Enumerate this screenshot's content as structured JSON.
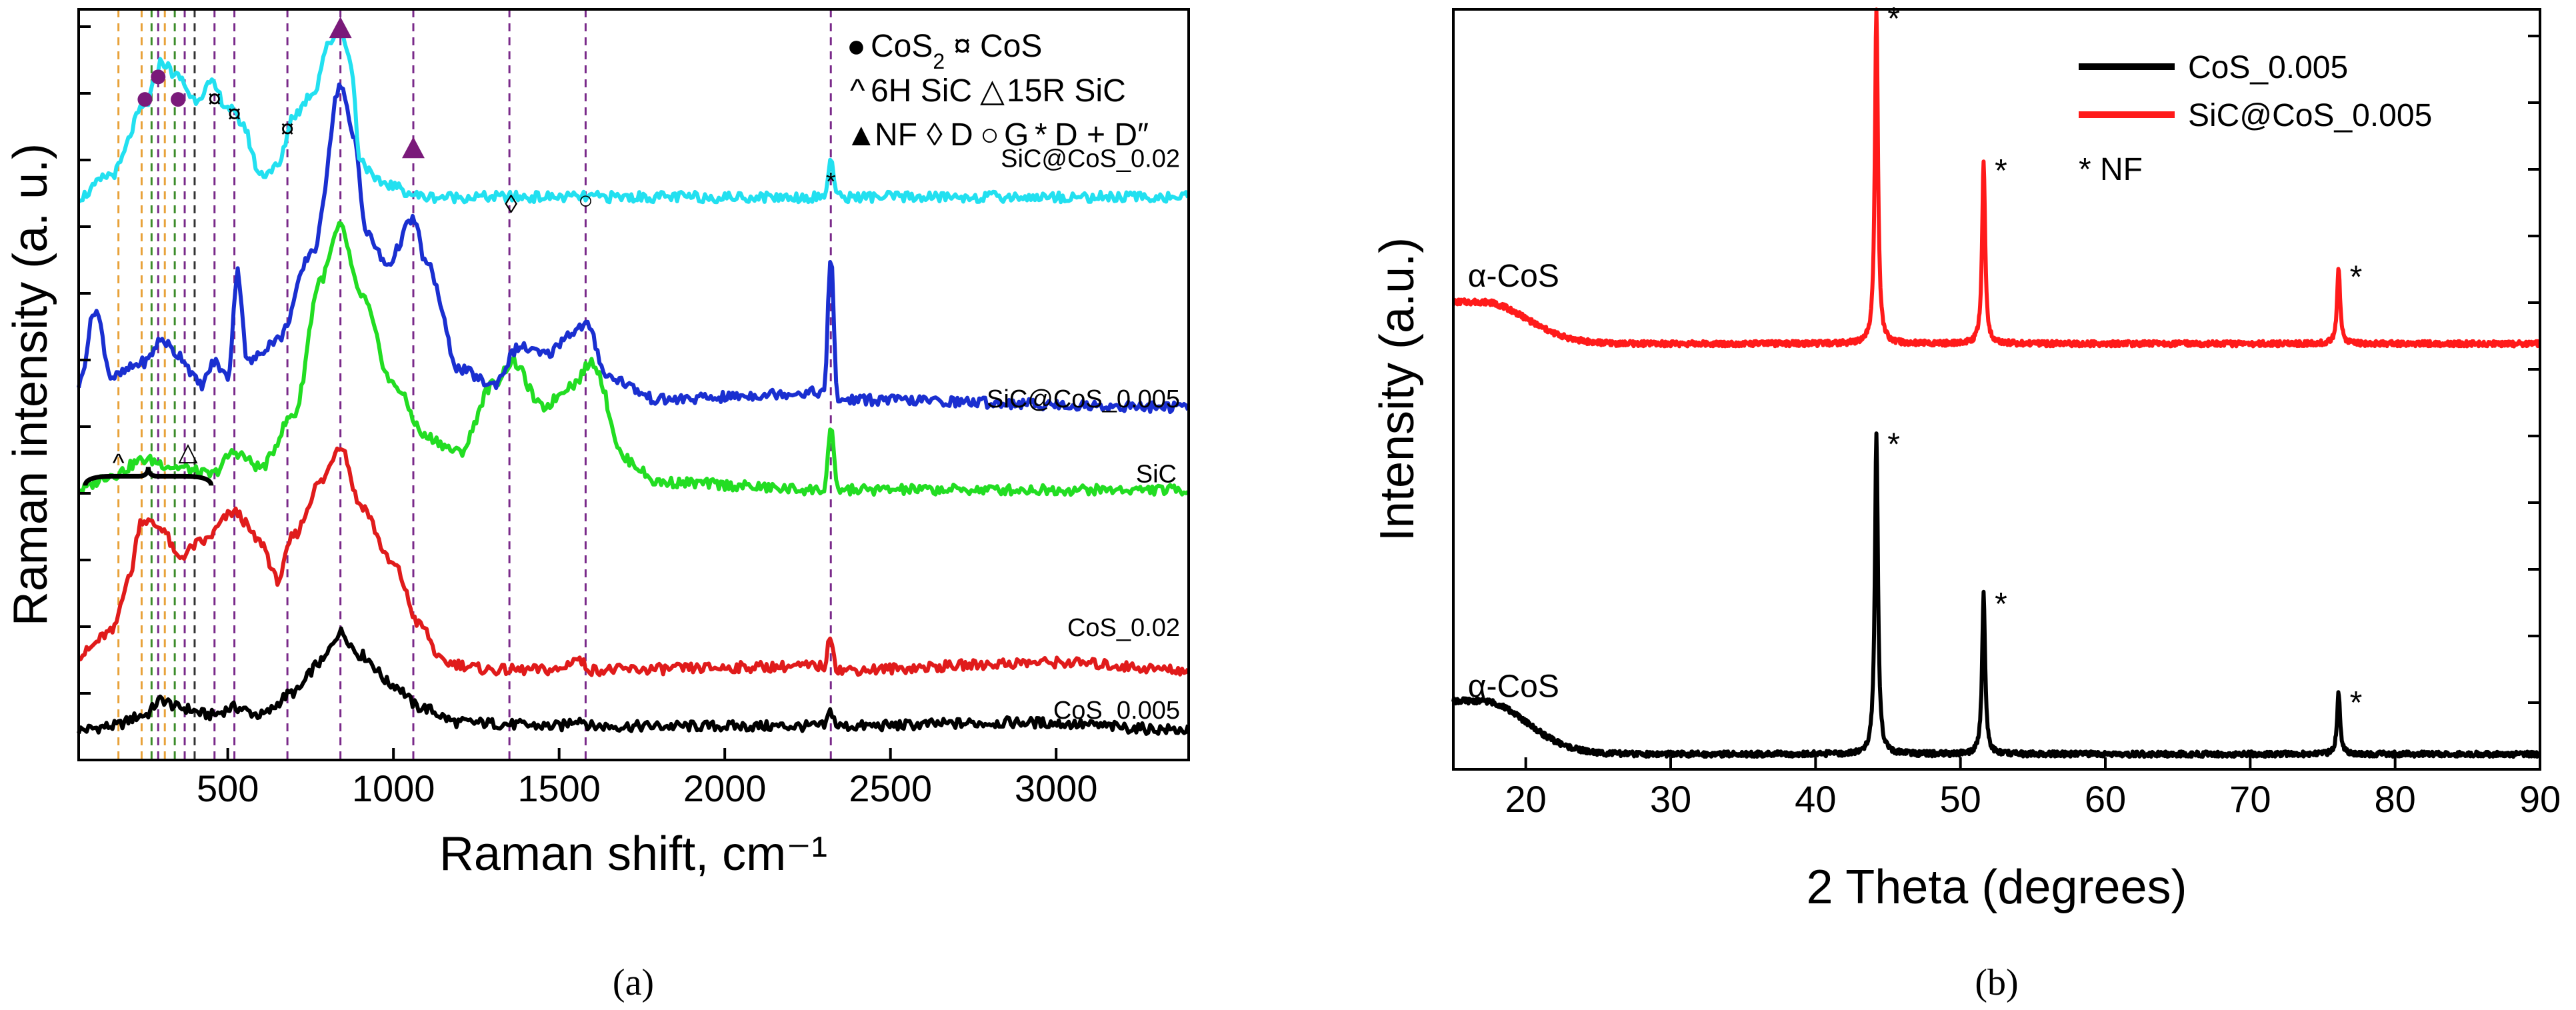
{
  "chart_data": [
    {
      "type": "line",
      "panel_label": "(a)",
      "xlabel": "Raman shift, cm⁻¹",
      "ylabel": "Raman intensity (a. u.)",
      "xlim": [
        50,
        3400
      ],
      "ylim": [
        0,
        100
      ],
      "x_ticks": [
        500,
        1000,
        1500,
        2000,
        2500,
        3000
      ],
      "series": [
        {
          "name": "CoS_0.005",
          "color": "#000000",
          "base": 4,
          "points": [
            [
              50,
              0
            ],
            [
              150,
              0.5
            ],
            [
              250,
              2
            ],
            [
              300,
              4
            ],
            [
              350,
              3
            ],
            [
              450,
              2
            ],
            [
              520,
              3
            ],
            [
              600,
              2
            ],
            [
              700,
              5
            ],
            [
              780,
              9
            ],
            [
              840,
              13
            ],
            [
              900,
              10
            ],
            [
              1000,
              6
            ],
            [
              1080,
              3
            ],
            [
              1200,
              1
            ],
            [
              1500,
              0.5
            ],
            [
              1560,
              1.5
            ],
            [
              1600,
              0.5
            ],
            [
              2300,
              0.5
            ],
            [
              2320,
              2.5
            ],
            [
              2340,
              0.5
            ],
            [
              2900,
              1
            ],
            [
              3400,
              0
            ]
          ]
        },
        {
          "name": "CoS_0.02",
          "color": "#e01b1b",
          "base": 12,
          "points": [
            [
              50,
              2
            ],
            [
              150,
              5
            ],
            [
              200,
              12
            ],
            [
              240,
              20
            ],
            [
              300,
              19
            ],
            [
              350,
              15
            ],
            [
              420,
              17
            ],
            [
              520,
              21
            ],
            [
              600,
              17
            ],
            [
              650,
              12
            ],
            [
              700,
              18
            ],
            [
              780,
              25
            ],
            [
              840,
              30
            ],
            [
              900,
              22
            ],
            [
              1000,
              14
            ],
            [
              1080,
              6
            ],
            [
              1150,
              1
            ],
            [
              1300,
              0
            ],
            [
              1500,
              0
            ],
            [
              1550,
              1.5
            ],
            [
              1600,
              0
            ],
            [
              2300,
              0.5
            ],
            [
              2320,
              4.5
            ],
            [
              2340,
              0
            ],
            [
              3000,
              1
            ],
            [
              3400,
              0
            ]
          ]
        },
        {
          "name": "SiC",
          "color": "#22dd22",
          "base": 36,
          "points": [
            [
              50,
              0
            ],
            [
              150,
              2
            ],
            [
              250,
              4
            ],
            [
              350,
              3
            ],
            [
              450,
              2
            ],
            [
              520,
              5
            ],
            [
              600,
              3
            ],
            [
              700,
              10
            ],
            [
              780,
              28
            ],
            [
              840,
              35
            ],
            [
              900,
              26
            ],
            [
              1000,
              14
            ],
            [
              1100,
              7
            ],
            [
              1200,
              5
            ],
            [
              1300,
              14
            ],
            [
              1360,
              17
            ],
            [
              1450,
              11
            ],
            [
              1540,
              14
            ],
            [
              1600,
              17
            ],
            [
              1700,
              4
            ],
            [
              1800,
              1
            ],
            [
              2300,
              0
            ],
            [
              2320,
              8
            ],
            [
              2340,
              0
            ],
            [
              3400,
              0
            ]
          ]
        },
        {
          "name": "SiC@CoS_0.005",
          "color": "#1a2fd0",
          "base": 48,
          "points": [
            [
              50,
              2
            ],
            [
              100,
              12
            ],
            [
              150,
              3
            ],
            [
              250,
              5
            ],
            [
              300,
              8
            ],
            [
              350,
              6
            ],
            [
              420,
              2
            ],
            [
              460,
              5
            ],
            [
              500,
              3
            ],
            [
              530,
              17
            ],
            [
              560,
              5
            ],
            [
              650,
              8
            ],
            [
              760,
              20
            ],
            [
              840,
              42
            ],
            [
              880,
              35
            ],
            [
              920,
              22
            ],
            [
              980,
              18
            ],
            [
              1060,
              24
            ],
            [
              1100,
              18
            ],
            [
              1200,
              4
            ],
            [
              1300,
              2
            ],
            [
              1380,
              7
            ],
            [
              1460,
              6
            ],
            [
              1540,
              9
            ],
            [
              1580,
              10
            ],
            [
              1650,
              3
            ],
            [
              1800,
              0
            ],
            [
              2300,
              1
            ],
            [
              2320,
              19
            ],
            [
              2340,
              0
            ],
            [
              3400,
              -1
            ]
          ]
        },
        {
          "name": "SiC@CoS_0.02",
          "color": "#22e0f0",
          "base": 75,
          "points": [
            [
              50,
              0
            ],
            [
              150,
              3
            ],
            [
              250,
              12
            ],
            [
              300,
              18
            ],
            [
              350,
              16
            ],
            [
              400,
              13
            ],
            [
              450,
              15
            ],
            [
              500,
              12
            ],
            [
              540,
              10
            ],
            [
              600,
              3
            ],
            [
              650,
              4
            ],
            [
              700,
              11
            ],
            [
              760,
              14
            ],
            [
              800,
              20
            ],
            [
              840,
              23
            ],
            [
              870,
              18
            ],
            [
              900,
              5
            ],
            [
              950,
              2
            ],
            [
              1100,
              0
            ],
            [
              1300,
              0
            ],
            [
              1400,
              0
            ],
            [
              2300,
              0
            ],
            [
              2320,
              5
            ],
            [
              2340,
              0
            ],
            [
              3400,
              0
            ]
          ]
        }
      ],
      "series_labels": [
        "SiC@CoS_0.02",
        "SiC@CoS_0.005",
        "SiC",
        "CoS_0.02",
        "CoS_0.005"
      ],
      "reference_lines": [
        {
          "x": 170,
          "color": "#e8a23a"
        },
        {
          "x": 240,
          "color": "#e8a23a"
        },
        {
          "x": 270,
          "color": "#3c8c2a"
        },
        {
          "x": 290,
          "color": "#7a2a8a"
        },
        {
          "x": 310,
          "color": "#e8a23a"
        },
        {
          "x": 340,
          "color": "#3c8c2a"
        },
        {
          "x": 370,
          "color": "#7a2a8a"
        },
        {
          "x": 400,
          "color": "#333333"
        },
        {
          "x": 460,
          "color": "#7a2a8a"
        },
        {
          "x": 520,
          "color": "#7a2a8a"
        },
        {
          "x": 680,
          "color": "#7a2a8a"
        },
        {
          "x": 840,
          "color": "#7a2a8a"
        },
        {
          "x": 1060,
          "color": "#7a2a8a"
        },
        {
          "x": 1350,
          "color": "#7a2a8a"
        },
        {
          "x": 1580,
          "color": "#7a2a8a"
        },
        {
          "x": 2320,
          "color": "#7a2a8a"
        }
      ],
      "legend_lines": [
        {
          "sym1": "●",
          "text1": "CoS",
          "sub": "2",
          "sym2": "¤",
          "text2": "CoS"
        },
        {
          "sym1": "^",
          "text1": "6H SiC",
          "sym2": "△",
          "text2": "15R SiC"
        },
        {
          "sym1": "▲",
          "text1": "NF",
          "sym2": "◊",
          "text2": "D",
          "sym3": "○",
          "text3": "G",
          "sym4": "*",
          "text4": "D + D″"
        }
      ],
      "legend_colors": {
        "cos2": "#7a1a7a",
        "cos": "#8a3a9a",
        "sic6h": "#e8a23a",
        "sic15r": "#3c8c2a",
        "purple": "#7a1a7a"
      }
    },
    {
      "type": "line",
      "panel_label": "(b)",
      "xlabel": "2 Theta (degrees)",
      "ylabel": "Intensity (a.u.)",
      "xlim": [
        15,
        90
      ],
      "x_ticks": [
        20,
        30,
        40,
        50,
        60,
        70,
        80,
        90
      ],
      "legend": [
        {
          "name": "CoS_0.005",
          "color": "#000000"
        },
        {
          "name": "SiC@CoS_0.005",
          "color": "#ff1a1a"
        }
      ],
      "legend_note": "* NF",
      "phase_label": "α-CoS",
      "peak_marker": "*",
      "series": [
        {
          "name": "SiC@CoS_0.005",
          "color": "#ff1a1a",
          "base": 0.56,
          "broad": {
            "center": 17,
            "height": 0.055,
            "width": 3
          },
          "peaks": [
            {
              "x": 44.2,
              "h": 0.44
            },
            {
              "x": 51.6,
              "h": 0.24
            },
            {
              "x": 76.1,
              "h": 0.1
            }
          ]
        },
        {
          "name": "CoS_0.005",
          "color": "#000000",
          "base": 0.02,
          "broad": {
            "center": 17,
            "height": 0.07,
            "width": 3
          },
          "peaks": [
            {
              "x": 44.2,
              "h": 0.42
            },
            {
              "x": 51.6,
              "h": 0.21
            },
            {
              "x": 76.1,
              "h": 0.08
            }
          ]
        }
      ]
    }
  ]
}
